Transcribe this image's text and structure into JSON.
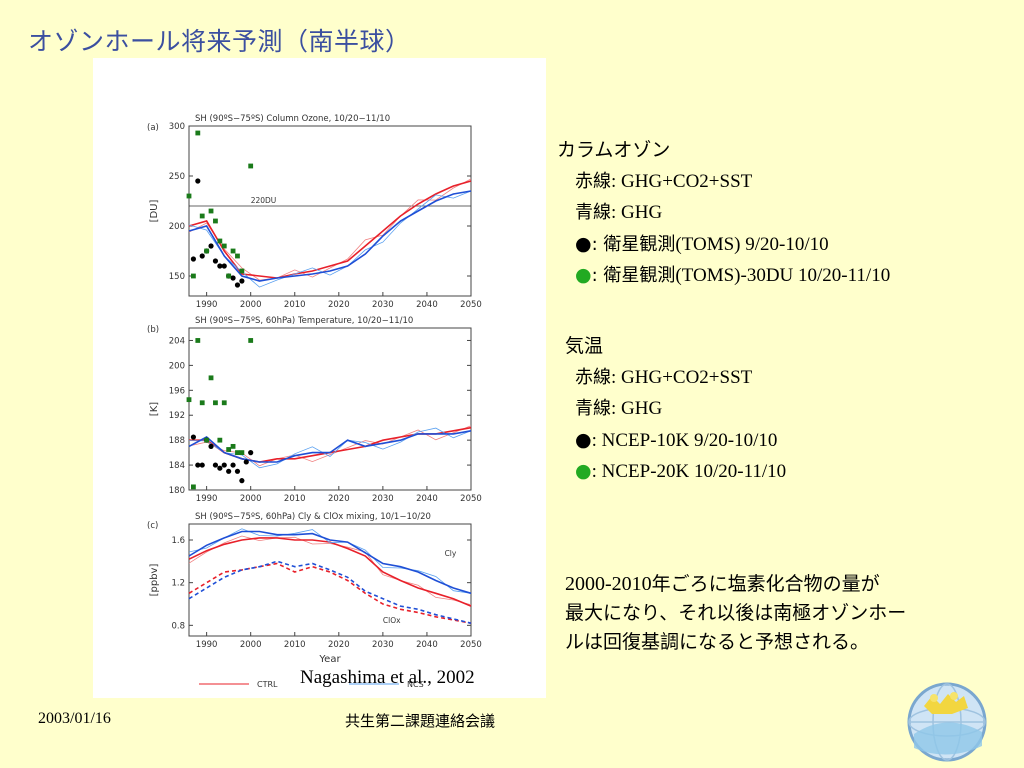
{
  "slide": {
    "title": "オゾンホール将来予測（南半球）",
    "citation": "Nagashima et al., 2002",
    "footer_date": "2003/01/16",
    "footer_meeting": "共生第二課題連絡会議",
    "logo_icon": "globe-logo-icon"
  },
  "legend_ozone": {
    "heading": "カラムオゾン",
    "red_jp": "赤線",
    "red_en": ": GHG+CO2+SST",
    "blue_jp": "青線",
    "blue_en": ": GHG",
    "black_sym": "●",
    "black_jp": ": 衛星観測",
    "black_en": "(TOMS) 9/20-10/10",
    "green_sym": "●",
    "green_jp": ": 衛星観測",
    "green_en": "(TOMS)-30DU 10/20-11/10"
  },
  "legend_temp": {
    "heading": "気温",
    "red_jp": "赤線",
    "red_en": ": GHG+CO2+SST",
    "blue_jp": "青線",
    "blue_en": ": GHG",
    "black_sym": "●",
    "black_en": ": NCEP-10K 9/20-10/10",
    "green_sym": "●",
    "green_en": ": NCEP-20K 10/20-11/10"
  },
  "conclusion": {
    "num": "2000-2010",
    "text1": "年ごろに塩素化合物の量が",
    "text2": "最大になり、それ以後は南極オゾンホー",
    "text3": "ルは回復基調になると予想される。"
  },
  "colors": {
    "red": "#e8202a",
    "blue": "#1f4fd6",
    "lightblue": "#5aa0f0",
    "black": "#000000",
    "green": "#1a7a1a",
    "title": "#3b4fa0"
  },
  "chart_data": [
    {
      "type": "line",
      "panel_label": "(a)",
      "title": "SH (90ºS−75ºS) Column Ozone, 10/20−11/10",
      "ylabel": "[DU]",
      "ylim": [
        130,
        300
      ],
      "xlim": [
        1986,
        2050
      ],
      "x_ticks": [
        1990,
        2000,
        2010,
        2020,
        2030,
        2040,
        2050
      ],
      "y_ticks": [
        150,
        200,
        250,
        300
      ],
      "reference_line": {
        "value": 220,
        "label": "220DU"
      },
      "series": [
        {
          "color": "red",
          "x": [
            1986,
            1990,
            1994,
            1998,
            2002,
            2006,
            2010,
            2014,
            2018,
            2022,
            2026,
            2030,
            2034,
            2038,
            2042,
            2046,
            2050
          ],
          "values": [
            200,
            205,
            175,
            152,
            150,
            148,
            152,
            155,
            160,
            165,
            180,
            195,
            210,
            222,
            232,
            240,
            245
          ]
        },
        {
          "color": "blue",
          "x": [
            1986,
            1990,
            1994,
            1998,
            2002,
            2006,
            2010,
            2014,
            2018,
            2022,
            2026,
            2030,
            2034,
            2038,
            2042,
            2046,
            2050
          ],
          "values": [
            195,
            200,
            170,
            150,
            145,
            148,
            150,
            152,
            155,
            160,
            172,
            190,
            205,
            215,
            225,
            232,
            235
          ]
        }
      ],
      "points_black": {
        "x": [
          1987,
          1988,
          1989,
          1990,
          1991,
          1992,
          1993,
          1994,
          1995,
          1996,
          1997,
          1998
        ],
        "values": [
          167,
          245,
          170,
          175,
          180,
          165,
          160,
          160,
          150,
          148,
          141,
          145
        ]
      },
      "points_green": {
        "x": [
          1986,
          1987,
          1988,
          1989,
          1990,
          1991,
          1992,
          1993,
          1994,
          1995,
          1996,
          1997,
          1998,
          2000
        ],
        "values": [
          230,
          150,
          293,
          210,
          175,
          215,
          205,
          185,
          180,
          150,
          175,
          170,
          155,
          260
        ]
      }
    },
    {
      "type": "line",
      "panel_label": "(b)",
      "title": "SH (90ºS−75ºS, 60hPa) Temperature, 10/20−11/10",
      "ylabel": "[K]",
      "ylim": [
        180,
        206
      ],
      "xlim": [
        1986,
        2050
      ],
      "x_ticks": [
        1990,
        2000,
        2010,
        2020,
        2030,
        2040,
        2050
      ],
      "y_ticks": [
        180,
        184,
        188,
        192,
        196,
        200,
        204
      ],
      "series": [
        {
          "color": "red",
          "x": [
            1986,
            1990,
            1994,
            1998,
            2002,
            2006,
            2010,
            2014,
            2018,
            2022,
            2026,
            2030,
            2034,
            2038,
            2042,
            2046,
            2050
          ],
          "values": [
            188,
            188,
            186,
            185,
            184.5,
            185,
            185,
            185.5,
            186,
            186.5,
            187,
            188,
            188.5,
            189,
            189,
            189.5,
            190
          ]
        },
        {
          "color": "blue",
          "x": [
            1986,
            1990,
            1994,
            1998,
            2002,
            2006,
            2010,
            2014,
            2018,
            2022,
            2026,
            2030,
            2034,
            2038,
            2042,
            2046,
            2050
          ],
          "values": [
            187,
            188.5,
            186,
            185,
            184.5,
            184.5,
            185.5,
            186,
            186,
            188,
            187,
            187.5,
            188,
            189,
            189,
            189,
            189.5
          ]
        }
      ],
      "points_black": {
        "x": [
          1987,
          1988,
          1989,
          1990,
          1991,
          1992,
          1993,
          1994,
          1995,
          1996,
          1997,
          1998,
          1999,
          2000
        ],
        "values": [
          188.5,
          184,
          184,
          188,
          187,
          184,
          183.5,
          184,
          183,
          184,
          183,
          181.5,
          184.5,
          186
        ]
      },
      "points_green": {
        "x": [
          1986,
          1987,
          1988,
          1989,
          1990,
          1991,
          1992,
          1993,
          1994,
          1995,
          1996,
          1997,
          1998,
          2000
        ],
        "values": [
          194.5,
          180.5,
          204,
          194,
          188,
          198,
          194,
          188,
          194,
          186.5,
          187,
          186,
          186,
          204
        ]
      }
    },
    {
      "type": "line",
      "panel_label": "(c)",
      "title": "SH (90ºS−75ºS, 60hPa) Cly & ClOx mixing, 10/1−10/20",
      "ylabel": "[ppbv]",
      "xlabel": "Year",
      "ylim": [
        0.7,
        1.75
      ],
      "xlim": [
        1986,
        2050
      ],
      "x_ticks": [
        1990,
        2000,
        2010,
        2020,
        2030,
        2040,
        2050
      ],
      "y_ticks": [
        0.8,
        1.2,
        1.6
      ],
      "annotations": [
        "Cly",
        "ClOx"
      ],
      "legend": [
        "CTRL",
        "NCS"
      ],
      "series": [
        {
          "name": "CTRL",
          "color": "red",
          "x": [
            1986,
            1990,
            1994,
            1998,
            2002,
            2006,
            2010,
            2014,
            2018,
            2022,
            2026,
            2030,
            2034,
            2038,
            2042,
            2046,
            2050
          ],
          "values": [
            1.42,
            1.5,
            1.56,
            1.6,
            1.62,
            1.62,
            1.6,
            1.6,
            1.58,
            1.52,
            1.45,
            1.3,
            1.22,
            1.15,
            1.1,
            1.05,
            0.98
          ]
        },
        {
          "name": "NCS",
          "color": "blue",
          "x": [
            1986,
            1990,
            1994,
            1998,
            2002,
            2006,
            2010,
            2014,
            2018,
            2022,
            2026,
            2030,
            2034,
            2038,
            2042,
            2046,
            2050
          ],
          "values": [
            1.45,
            1.55,
            1.62,
            1.68,
            1.68,
            1.65,
            1.65,
            1.66,
            1.6,
            1.58,
            1.48,
            1.38,
            1.35,
            1.3,
            1.22,
            1.15,
            1.1
          ]
        },
        {
          "name": "CTRL ClOx",
          "color": "red",
          "dashed": true,
          "x": [
            1986,
            1990,
            1994,
            1998,
            2002,
            2006,
            2010,
            2014,
            2018,
            2022,
            2026,
            2030,
            2034,
            2038,
            2042,
            2046,
            2050
          ],
          "values": [
            1.1,
            1.2,
            1.3,
            1.32,
            1.35,
            1.38,
            1.3,
            1.35,
            1.3,
            1.22,
            1.1,
            1.0,
            0.95,
            0.92,
            0.88,
            0.85,
            0.82
          ]
        },
        {
          "name": "NCS ClOx",
          "color": "blue",
          "dashed": true,
          "x": [
            1986,
            1990,
            1994,
            1998,
            2002,
            2006,
            2010,
            2014,
            2018,
            2022,
            2026,
            2030,
            2034,
            2038,
            2042,
            2046,
            2050
          ],
          "values": [
            1.05,
            1.15,
            1.25,
            1.32,
            1.35,
            1.4,
            1.35,
            1.38,
            1.32,
            1.25,
            1.12,
            1.05,
            0.98,
            0.95,
            0.9,
            0.86,
            0.82
          ]
        }
      ]
    }
  ]
}
